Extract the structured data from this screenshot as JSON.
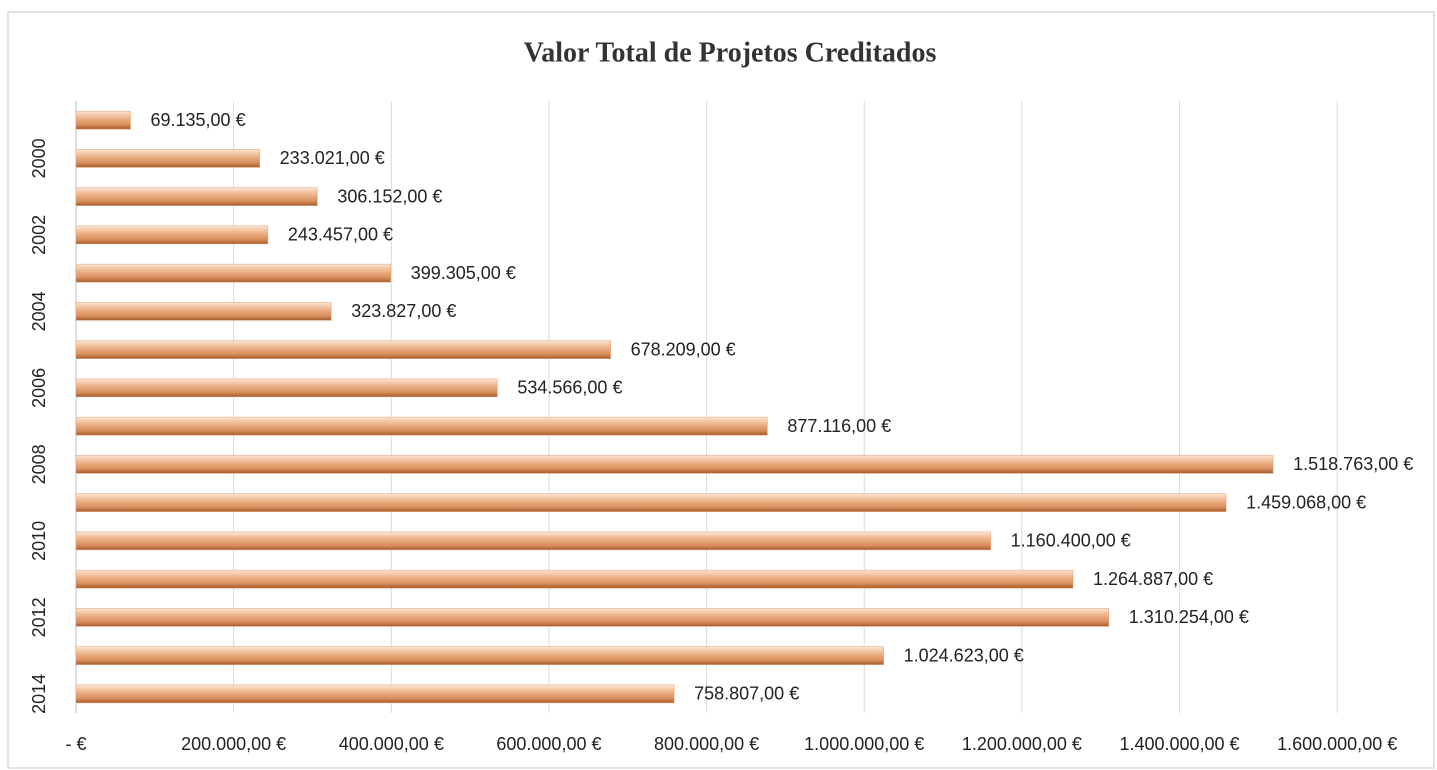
{
  "chart_data": {
    "type": "bar",
    "orientation": "horizontal",
    "title": "Valor Total de Projetos Creditados",
    "categories": [
      null,
      "2000",
      null,
      "2002",
      null,
      "2004",
      null,
      "2006",
      null,
      "2008",
      null,
      "2010",
      null,
      "2012",
      null,
      "2014"
    ],
    "values": [
      69135,
      233021,
      306152,
      243457,
      399305,
      323827,
      678209,
      534566,
      877116,
      1518763,
      1459068,
      1160400,
      1264887,
      1310254,
      1024623,
      758807
    ],
    "value_labels": [
      "69.135,00 €",
      "233.021,00 €",
      "306.152,00 €",
      "243.457,00 €",
      "399.305,00 €",
      "323.827,00 €",
      "678.209,00 €",
      "534.566,00 €",
      "877.116,00 €",
      "1.518.763,00 €",
      "1.459.068,00 €",
      "1.160.400,00 €",
      "1.264.887,00 €",
      "1.310.254,00 €",
      "1.024.623,00 €",
      "758.807,00 €"
    ],
    "color": "#e3a173",
    "xlim": [
      0,
      1700000
    ],
    "xticks": [
      {
        "value": 0,
        "label": "-   €"
      },
      {
        "value": 200000,
        "label": "200.000,00 €"
      },
      {
        "value": 400000,
        "label": "400.000,00 €"
      },
      {
        "value": 600000,
        "label": "600.000,00 €"
      },
      {
        "value": 800000,
        "label": "800.000,00 €"
      },
      {
        "value": 1000000,
        "label": "1.000.000,00 €"
      },
      {
        "value": 1200000,
        "label": "1.200.000,00 €"
      },
      {
        "value": 1400000,
        "label": "1.400.000,00 €"
      },
      {
        "value": 1600000,
        "label": "1.600.000,00 €"
      }
    ],
    "grid": true
  }
}
